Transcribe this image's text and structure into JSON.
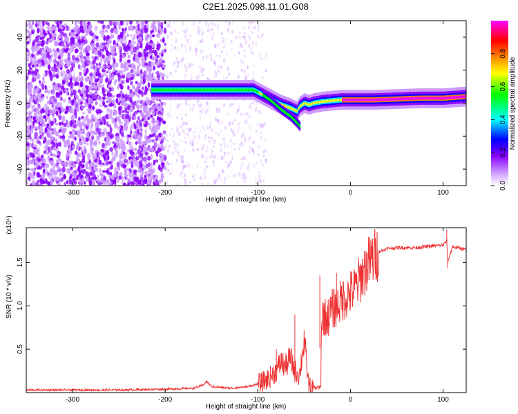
{
  "title": "C2E1.2025.098.11.01.G08",
  "chart_data": [
    {
      "type": "heatmap",
      "xlabel": "Height of straight line (km)",
      "ylabel": "Frequency (Hz)",
      "xlim": [
        -350,
        125
      ],
      "ylim": [
        -50,
        50
      ],
      "xticks": [
        -300,
        -200,
        -100,
        0,
        100
      ],
      "yticks": [
        -40,
        -20,
        0,
        20,
        40
      ],
      "colorbar": {
        "label": "Normalized spectral amplitude",
        "range": [
          0,
          1
        ],
        "ticks": [
          "0.0",
          "0.2",
          "0.4",
          "0.6",
          "0.8"
        ],
        "colors": [
          "#ffffff",
          "#cc99ff",
          "#8800ff",
          "#0000ff",
          "#00ffff",
          "#00ff00",
          "#ffff00",
          "#ff8800",
          "#ff0000",
          "#ff00ff"
        ]
      },
      "ridge": {
        "x": [
          -215,
          -200,
          -180,
          -160,
          -140,
          -120,
          -105,
          -95,
          -85,
          -75,
          -65,
          -58,
          -55,
          -50,
          -45,
          -40,
          -30,
          -20,
          -10,
          0,
          25,
          50,
          75,
          100,
          125
        ],
        "y": [
          8,
          8,
          8,
          8,
          8,
          8,
          8,
          5,
          2,
          -1,
          -3,
          -5,
          -2,
          0,
          -1,
          0,
          1,
          1.5,
          2,
          2,
          2,
          2.5,
          3,
          3,
          4
        ]
      },
      "branch": {
        "x": [
          -95,
          -85,
          -75,
          -65,
          -58,
          -55
        ],
        "y": [
          5,
          1,
          -4,
          -8,
          -12,
          -14
        ]
      },
      "noise_region": [
        -350,
        -200
      ]
    },
    {
      "type": "line",
      "xlabel": "Height of straight line (km)",
      "ylabel": "SNR (10 * v/v)",
      "scale_label": "(x10⁴)",
      "xlim": [
        -350,
        125
      ],
      "ylim": [
        0,
        1.9
      ],
      "xticks": [
        -300,
        -200,
        -100,
        0,
        100
      ],
      "yticks": [
        "0.5",
        "1.0",
        "1.5"
      ],
      "color": "#ee3333",
      "x": [
        -350,
        -250,
        -200,
        -170,
        -160,
        -155,
        -150,
        -130,
        -110,
        -100,
        -90,
        -80,
        -75,
        -70,
        -65,
        -60,
        -55,
        -50,
        -45,
        -40,
        -35,
        -30,
        -25,
        -20,
        -15,
        -10,
        -5,
        0,
        5,
        10,
        15,
        20,
        25,
        30,
        40,
        50,
        60,
        70,
        80,
        90,
        100,
        104,
        105,
        110,
        125
      ],
      "y": [
        0.03,
        0.03,
        0.04,
        0.05,
        0.08,
        0.13,
        0.07,
        0.05,
        0.07,
        0.1,
        0.15,
        0.25,
        0.35,
        0.3,
        0.4,
        0.25,
        0.2,
        0.6,
        0.08,
        0.05,
        0.25,
        0.9,
        0.85,
        0.95,
        1.0,
        1.05,
        1.1,
        1.15,
        1.2,
        1.3,
        1.4,
        1.5,
        1.55,
        1.62,
        1.66,
        1.67,
        1.67,
        1.67,
        1.68,
        1.69,
        1.7,
        1.75,
        1.5,
        1.68,
        1.65
      ],
      "spikes": [
        {
          "x": -80,
          "y": 0.5
        },
        {
          "x": -75,
          "y": 0.45
        },
        {
          "x": -60,
          "y": 0.9
        },
        {
          "x": -50,
          "y": 0.72
        },
        {
          "x": -33,
          "y": 1.35
        },
        {
          "x": -25,
          "y": 1.0
        },
        {
          "x": -15,
          "y": 1.38
        },
        {
          "x": -8,
          "y": 1.28
        },
        {
          "x": 12,
          "y": 1.47
        },
        {
          "x": 104,
          "y": 1.88
        },
        {
          "x": 105,
          "y": 1.43
        }
      ]
    }
  ]
}
